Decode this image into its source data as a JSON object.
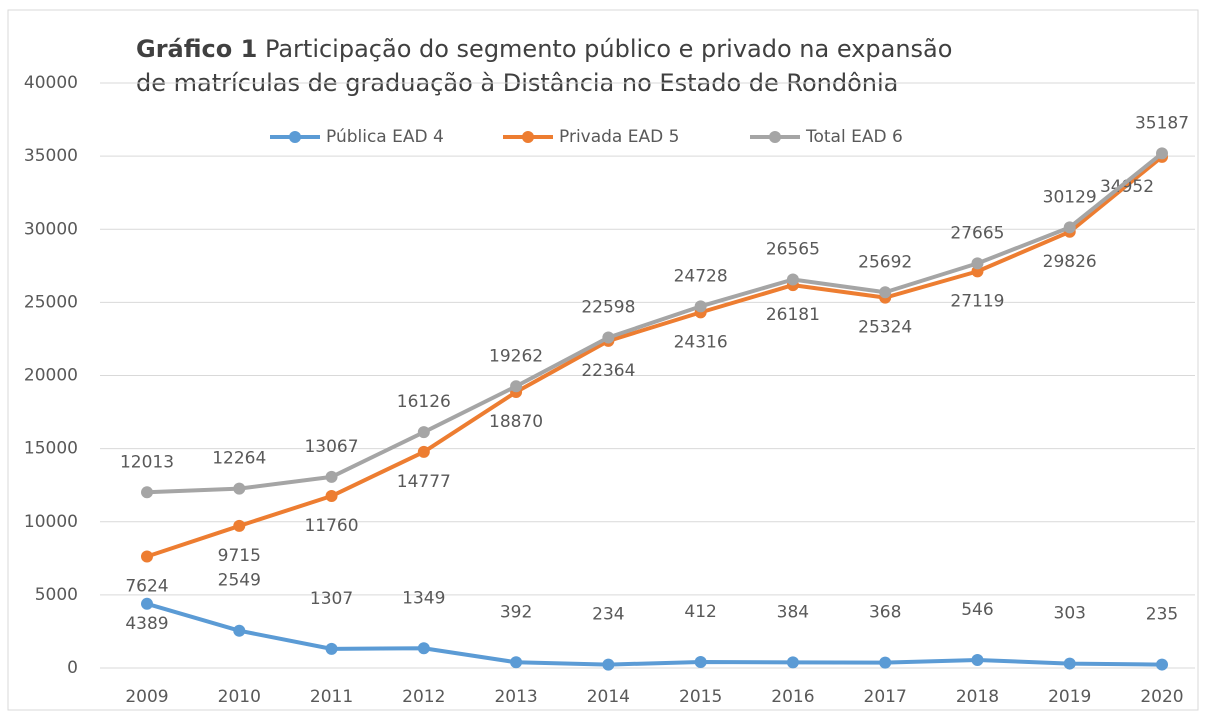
{
  "chart_data": {
    "type": "line",
    "title_prefix": "Gráfico 1",
    "title_lines": [
      "Participação do segmento público e privado na expansão",
      "de matrículas de graduação à Distância no Estado de Rondônia"
    ],
    "categories": [
      "2009",
      "2010",
      "2011",
      "2012",
      "2013",
      "2014",
      "2015",
      "2016",
      "2017",
      "2018",
      "2019",
      "2020"
    ],
    "series": [
      {
        "name": "Pública EAD 4",
        "color": "#5b9bd5",
        "values": [
          4389,
          2549,
          1307,
          1349,
          392,
          234,
          412,
          384,
          368,
          546,
          303,
          235
        ]
      },
      {
        "name": "Privada EAD 5",
        "color": "#ed7d31",
        "values": [
          7624,
          9715,
          11760,
          14777,
          18870,
          22364,
          24316,
          26181,
          25324,
          27119,
          29826,
          34952
        ]
      },
      {
        "name": "Total EAD 6",
        "color": "#a5a5a5",
        "values": [
          12013,
          12264,
          13067,
          16126,
          19262,
          22598,
          24728,
          26565,
          25692,
          27665,
          30129,
          35187
        ]
      }
    ],
    "ylim": [
      0,
      40000
    ],
    "yticks": [
      0,
      5000,
      10000,
      15000,
      20000,
      25000,
      30000,
      35000,
      40000
    ],
    "grid": true,
    "legend": "top"
  }
}
